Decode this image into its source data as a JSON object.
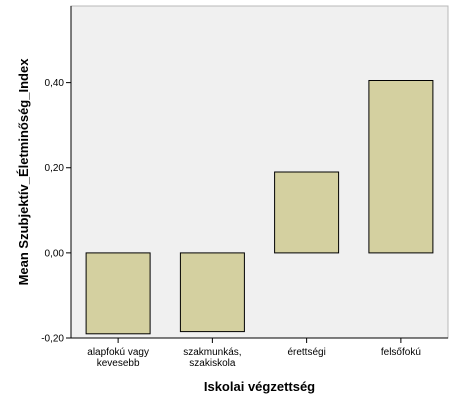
{
  "chart_data": {
    "type": "bar",
    "categories": [
      [
        "alapfokú vagy",
        "kevesebb"
      ],
      [
        "szakmunkás,",
        "szakiskola"
      ],
      [
        "érettségi"
      ],
      [
        "felsőfokú"
      ]
    ],
    "values": [
      -0.19,
      -0.185,
      0.19,
      0.405
    ],
    "xlabel": "Iskolai végzettség",
    "ylabel": "Mean Szubjektív_Életminőség_Index",
    "ylim": [
      -0.2,
      0.58
    ],
    "yticks": [
      -0.2,
      0.0,
      0.2,
      0.4
    ],
    "ytick_labels": [
      "-0,20",
      "0,00",
      "0,20",
      "0,40"
    ],
    "grid": false,
    "colors": {
      "plot_background": "#f0f0f0",
      "bar_fill": "#d4d0a0",
      "bar_stroke": "#000000"
    }
  }
}
